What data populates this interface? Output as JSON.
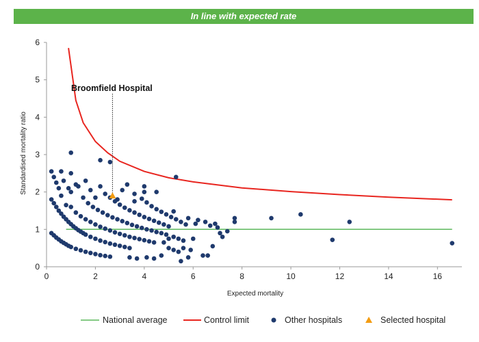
{
  "header": {
    "status": "In line with expected rate"
  },
  "chart_data": {
    "type": "scatter",
    "xlabel": "Expected mortality",
    "ylabel": "Standardised mortality ratio",
    "xlim": [
      0,
      17
    ],
    "ylim": [
      0,
      6
    ],
    "x_ticks": [
      "0",
      "2",
      "4",
      "6",
      "8",
      "10",
      "12",
      "14",
      "16"
    ],
    "y_ticks": [
      "0",
      "1",
      "2",
      "3",
      "4",
      "5",
      "6"
    ],
    "grid": false,
    "legend_position": "bottom",
    "annotation": {
      "label": "Broomfield Hospital",
      "x": 2.7,
      "y": 1.9
    },
    "series": [
      {
        "name": "National average",
        "kind": "line",
        "color": "#5cb85c",
        "x": [
          0.8,
          16.6
        ],
        "y": [
          1.0,
          1.0
        ]
      },
      {
        "name": "Control limit",
        "kind": "line",
        "color": "#e8251f",
        "x": [
          0.9,
          1.2,
          1.5,
          2.0,
          2.5,
          3.0,
          4.0,
          5.0,
          6.0,
          8.0,
          10.0,
          12.0,
          14.0,
          16.6
        ],
        "y": [
          5.85,
          4.45,
          3.85,
          3.35,
          3.05,
          2.82,
          2.55,
          2.38,
          2.27,
          2.11,
          2.01,
          1.93,
          1.86,
          1.79
        ]
      },
      {
        "name": "Other hospitals",
        "kind": "scatter",
        "color": "#1f3a6d",
        "points": [
          [
            0.2,
            2.55
          ],
          [
            0.3,
            2.4
          ],
          [
            0.4,
            2.25
          ],
          [
            0.5,
            2.1
          ],
          [
            0.6,
            2.55
          ],
          [
            0.7,
            2.3
          ],
          [
            1.0,
            3.05
          ],
          [
            0.9,
            2.1
          ],
          [
            1.0,
            2.5
          ],
          [
            1.2,
            2.2
          ],
          [
            0.6,
            1.9
          ],
          [
            0.8,
            1.65
          ],
          [
            1.0,
            2.0
          ],
          [
            1.3,
            2.15
          ],
          [
            1.6,
            2.3
          ],
          [
            1.8,
            2.05
          ],
          [
            2.0,
            1.85
          ],
          [
            2.2,
            2.85
          ],
          [
            2.6,
            2.8
          ],
          [
            2.2,
            2.15
          ],
          [
            2.9,
            1.8
          ],
          [
            3.1,
            2.05
          ],
          [
            3.3,
            2.2
          ],
          [
            3.6,
            1.75
          ],
          [
            4.0,
            2.15
          ],
          [
            4.0,
            2.0
          ],
          [
            4.5,
            2.0
          ],
          [
            5.3,
            2.4
          ],
          [
            0.2,
            1.8
          ],
          [
            0.3,
            1.7
          ],
          [
            0.4,
            1.6
          ],
          [
            0.5,
            1.5
          ],
          [
            0.6,
            1.42
          ],
          [
            0.7,
            1.34
          ],
          [
            0.8,
            1.27
          ],
          [
            0.9,
            1.2
          ],
          [
            1.0,
            1.14
          ],
          [
            1.1,
            1.08
          ],
          [
            1.2,
            1.03
          ],
          [
            1.3,
            0.98
          ],
          [
            1.4,
            0.94
          ],
          [
            1.5,
            0.9
          ],
          [
            1.6,
            0.86
          ],
          [
            1.8,
            0.8
          ],
          [
            2.0,
            0.75
          ],
          [
            2.2,
            0.7
          ],
          [
            2.4,
            0.66
          ],
          [
            2.6,
            0.62
          ],
          [
            2.8,
            0.59
          ],
          [
            3.0,
            0.56
          ],
          [
            3.2,
            0.53
          ],
          [
            3.4,
            0.5
          ],
          [
            0.2,
            0.9
          ],
          [
            0.3,
            0.84
          ],
          [
            0.4,
            0.78
          ],
          [
            0.5,
            0.73
          ],
          [
            0.6,
            0.68
          ],
          [
            0.7,
            0.64
          ],
          [
            0.8,
            0.6
          ],
          [
            0.9,
            0.56
          ],
          [
            1.0,
            0.53
          ],
          [
            1.2,
            0.48
          ],
          [
            1.4,
            0.44
          ],
          [
            1.6,
            0.4
          ],
          [
            1.8,
            0.37
          ],
          [
            2.0,
            0.34
          ],
          [
            2.2,
            0.31
          ],
          [
            2.4,
            0.29
          ],
          [
            2.6,
            0.27
          ],
          [
            1.0,
            1.6
          ],
          [
            1.2,
            1.45
          ],
          [
            1.4,
            1.35
          ],
          [
            1.6,
            1.27
          ],
          [
            1.8,
            1.2
          ],
          [
            2.0,
            1.13
          ],
          [
            2.2,
            1.07
          ],
          [
            2.4,
            1.02
          ],
          [
            2.6,
            0.97
          ],
          [
            2.8,
            0.92
          ],
          [
            3.0,
            0.88
          ],
          [
            3.2,
            0.84
          ],
          [
            3.4,
            0.8
          ],
          [
            3.6,
            0.77
          ],
          [
            3.8,
            0.74
          ],
          [
            4.0,
            0.71
          ],
          [
            4.2,
            0.68
          ],
          [
            4.4,
            0.65
          ],
          [
            1.5,
            1.85
          ],
          [
            1.7,
            1.7
          ],
          [
            1.9,
            1.6
          ],
          [
            2.1,
            1.52
          ],
          [
            2.3,
            1.45
          ],
          [
            2.5,
            1.38
          ],
          [
            2.7,
            1.32
          ],
          [
            2.9,
            1.27
          ],
          [
            3.1,
            1.22
          ],
          [
            3.3,
            1.17
          ],
          [
            3.5,
            1.12
          ],
          [
            3.7,
            1.08
          ],
          [
            3.9,
            1.04
          ],
          [
            4.1,
            1.0
          ],
          [
            4.3,
            0.97
          ],
          [
            4.5,
            0.93
          ],
          [
            4.7,
            0.9
          ],
          [
            4.9,
            0.86
          ],
          [
            2.4,
            1.95
          ],
          [
            2.6,
            1.85
          ],
          [
            2.8,
            1.75
          ],
          [
            3.0,
            1.66
          ],
          [
            3.2,
            1.58
          ],
          [
            3.4,
            1.51
          ],
          [
            3.6,
            1.45
          ],
          [
            3.8,
            1.39
          ],
          [
            4.0,
            1.33
          ],
          [
            4.2,
            1.28
          ],
          [
            4.4,
            1.23
          ],
          [
            4.6,
            1.18
          ],
          [
            4.8,
            1.13
          ],
          [
            5.0,
            1.08
          ],
          [
            3.6,
            1.95
          ],
          [
            3.9,
            1.82
          ],
          [
            4.1,
            1.72
          ],
          [
            4.3,
            1.62
          ],
          [
            4.5,
            1.54
          ],
          [
            4.7,
            1.47
          ],
          [
            4.9,
            1.4
          ],
          [
            5.1,
            1.33
          ],
          [
            5.3,
            1.27
          ],
          [
            5.5,
            1.2
          ],
          [
            5.7,
            1.13
          ],
          [
            3.4,
            0.25
          ],
          [
            3.7,
            0.22
          ],
          [
            4.1,
            0.25
          ],
          [
            4.4,
            0.22
          ],
          [
            4.7,
            0.3
          ],
          [
            5.0,
            0.5
          ],
          [
            5.2,
            0.45
          ],
          [
            5.4,
            0.4
          ],
          [
            5.5,
            0.15
          ],
          [
            5.6,
            0.5
          ],
          [
            5.8,
            0.25
          ],
          [
            5.9,
            0.45
          ],
          [
            4.8,
            0.65
          ],
          [
            5.0,
            0.75
          ],
          [
            5.2,
            0.8
          ],
          [
            5.4,
            0.75
          ],
          [
            5.6,
            0.7
          ],
          [
            6.0,
            0.75
          ],
          [
            5.2,
            1.48
          ],
          [
            5.8,
            1.3
          ],
          [
            6.2,
            1.25
          ],
          [
            6.1,
            1.15
          ],
          [
            6.4,
            0.3
          ],
          [
            6.6,
            0.3
          ],
          [
            6.8,
            0.55
          ],
          [
            6.5,
            1.2
          ],
          [
            6.7,
            1.1
          ],
          [
            6.9,
            1.15
          ],
          [
            7.0,
            1.05
          ],
          [
            7.1,
            0.9
          ],
          [
            7.2,
            0.8
          ],
          [
            7.4,
            0.95
          ],
          [
            7.7,
            1.2
          ],
          [
            7.7,
            1.3
          ],
          [
            9.2,
            1.3
          ],
          [
            10.4,
            1.4
          ],
          [
            11.7,
            0.72
          ],
          [
            12.4,
            1.2
          ],
          [
            16.6,
            0.63
          ]
        ]
      },
      {
        "name": "Selected hospital",
        "kind": "marker",
        "color": "#f39c12",
        "points": [
          [
            2.7,
            1.9
          ]
        ]
      }
    ]
  }
}
